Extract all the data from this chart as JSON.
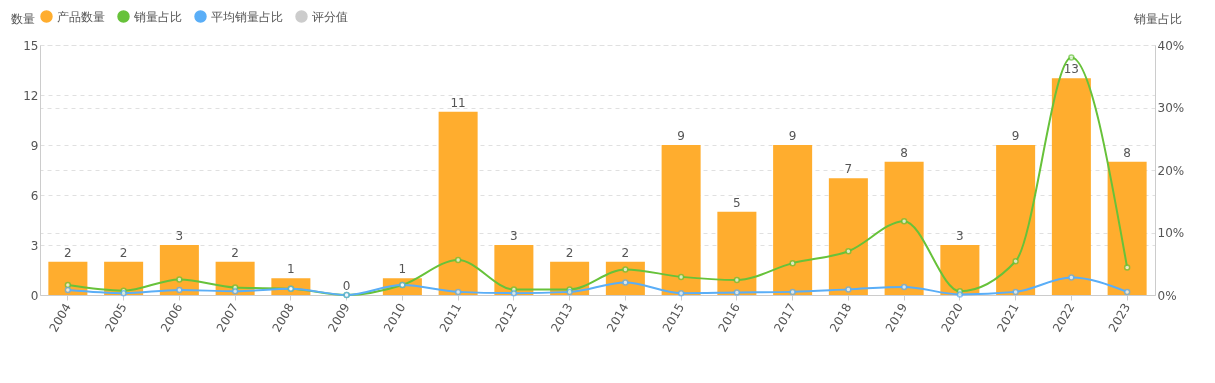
{
  "chart_data": {
    "type": "bar",
    "categories": [
      "2004",
      "2005",
      "2006",
      "2007",
      "2008",
      "2009",
      "2010",
      "2011",
      "2012",
      "2013",
      "2014",
      "2015",
      "2016",
      "2017",
      "2018",
      "2019",
      "2020",
      "2021",
      "2022",
      "2023"
    ],
    "ylabel": "数量",
    "y2label": "销量占比",
    "ylim": [
      0,
      15
    ],
    "yticks": [
      0,
      3,
      6,
      9,
      12,
      15
    ],
    "y2lim": [
      0,
      40
    ],
    "y2ticks": [
      {
        "value": 0,
        "label": "0%"
      },
      {
        "value": 10,
        "label": "10%"
      },
      {
        "value": 20,
        "label": "20%"
      },
      {
        "value": 30,
        "label": "30%"
      },
      {
        "value": 40,
        "label": "40%"
      }
    ],
    "grid": true,
    "legend": "top",
    "marker": "circle",
    "series": [
      {
        "name": "产品数量",
        "color": "#ffad2e",
        "values": [
          2,
          2,
          3,
          2,
          1,
          0,
          1,
          11,
          3,
          2,
          2,
          9,
          5,
          9,
          7,
          8,
          3,
          9,
          13,
          8
        ],
        "value_labels": [
          "2",
          "2",
          "3",
          "2",
          "1",
          "0",
          "1",
          "11",
          "3",
          "2",
          "2",
          "9",
          "5",
          "9",
          "7",
          "8",
          "3",
          "9",
          "13",
          "8"
        ]
      },
      {
        "name": "销量占比",
        "type": "line",
        "axis": "y2",
        "color": "#67c23a",
        "values": [
          1.6,
          0.7,
          2.5,
          1.2,
          1.0,
          0,
          1.6,
          5.6,
          0.9,
          0.9,
          4.1,
          2.9,
          2.4,
          5.1,
          7.0,
          11.8,
          0.6,
          5.4,
          38.0,
          4.4
        ]
      },
      {
        "name": "平均销量占比",
        "type": "line",
        "axis": "y2",
        "color": "#5aaef7",
        "values": [
          0.8,
          0.3,
          0.8,
          0.6,
          1.0,
          0,
          1.6,
          0.5,
          0.3,
          0.5,
          2.0,
          0.3,
          0.4,
          0.5,
          0.9,
          1.3,
          0.1,
          0.5,
          2.8,
          0.5
        ]
      },
      {
        "name": "评分值",
        "type": "line",
        "axis": "y2",
        "color": "#cccccc",
        "values": [
          null,
          null,
          null,
          null,
          null,
          null,
          null,
          null,
          null,
          null,
          null,
          null,
          null,
          null,
          null,
          null,
          null,
          null,
          null,
          null
        ]
      }
    ]
  }
}
